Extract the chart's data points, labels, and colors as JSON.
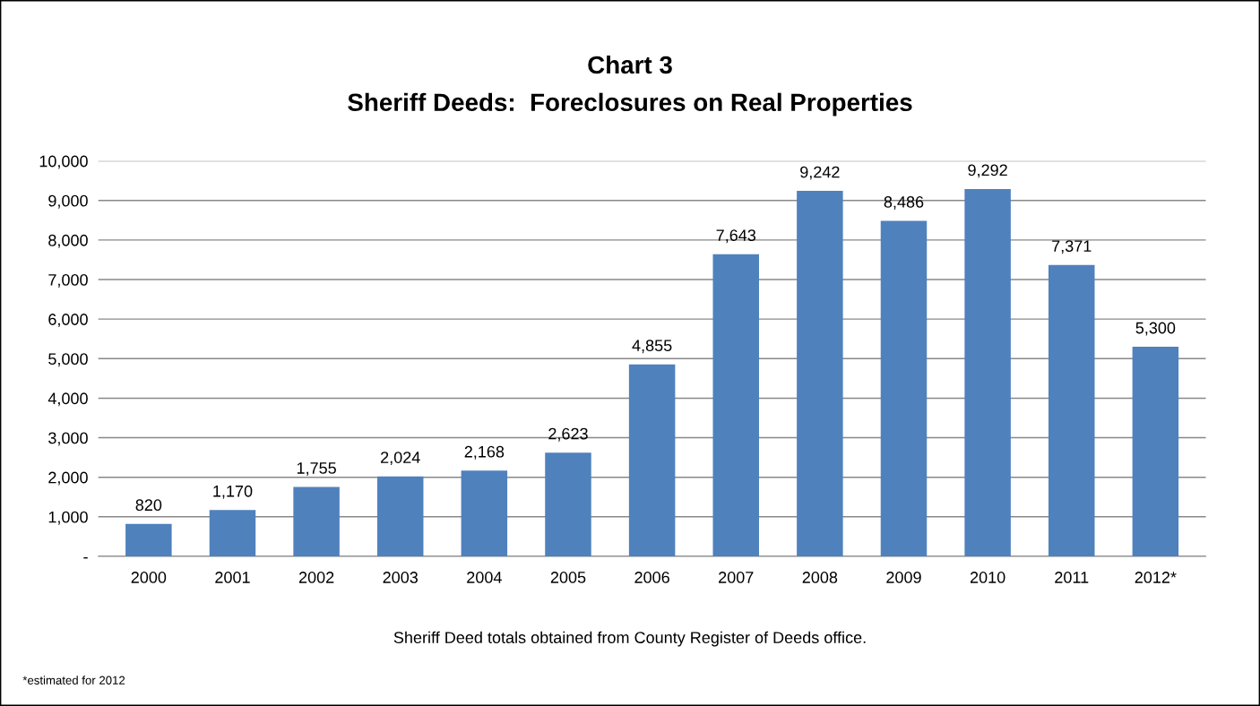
{
  "chart_data": {
    "type": "bar",
    "title": "Chart 3",
    "subtitle": "Sheriff Deeds:  Foreclosures on Real Properties",
    "categories": [
      "2000",
      "2001",
      "2002",
      "2003",
      "2004",
      "2005",
      "2006",
      "2007",
      "2008",
      "2009",
      "2010",
      "2011",
      "2012*"
    ],
    "values": [
      820,
      1170,
      1755,
      2024,
      2168,
      2623,
      4855,
      7643,
      9242,
      8486,
      9292,
      7371,
      5300
    ],
    "value_labels": [
      "820",
      "1,170",
      "1,755",
      "2,024",
      "2,168",
      "2,623",
      "4,855",
      "7,643",
      "9,242",
      "8,486",
      "9,292",
      "7,371",
      "5,300"
    ],
    "color": "#4f81bd",
    "grid": "y",
    "ylim": [
      0,
      10000
    ],
    "yticks": [
      {
        "value": 0,
        "label": "-"
      },
      {
        "value": 1000,
        "label": "1,000"
      },
      {
        "value": 2000,
        "label": "2,000"
      },
      {
        "value": 3000,
        "label": "3,000"
      },
      {
        "value": 4000,
        "label": "4,000"
      },
      {
        "value": 5000,
        "label": "5,000"
      },
      {
        "value": 6000,
        "label": "6,000"
      },
      {
        "value": 7000,
        "label": "7,000"
      },
      {
        "value": 8000,
        "label": "8,000"
      },
      {
        "value": 9000,
        "label": "9,000"
      },
      {
        "value": 10000,
        "label": "10,000"
      }
    ],
    "annotations": [
      "Sheriff Deed totals obtained from County Register of Deeds office.",
      "*estimated for 2012"
    ]
  }
}
